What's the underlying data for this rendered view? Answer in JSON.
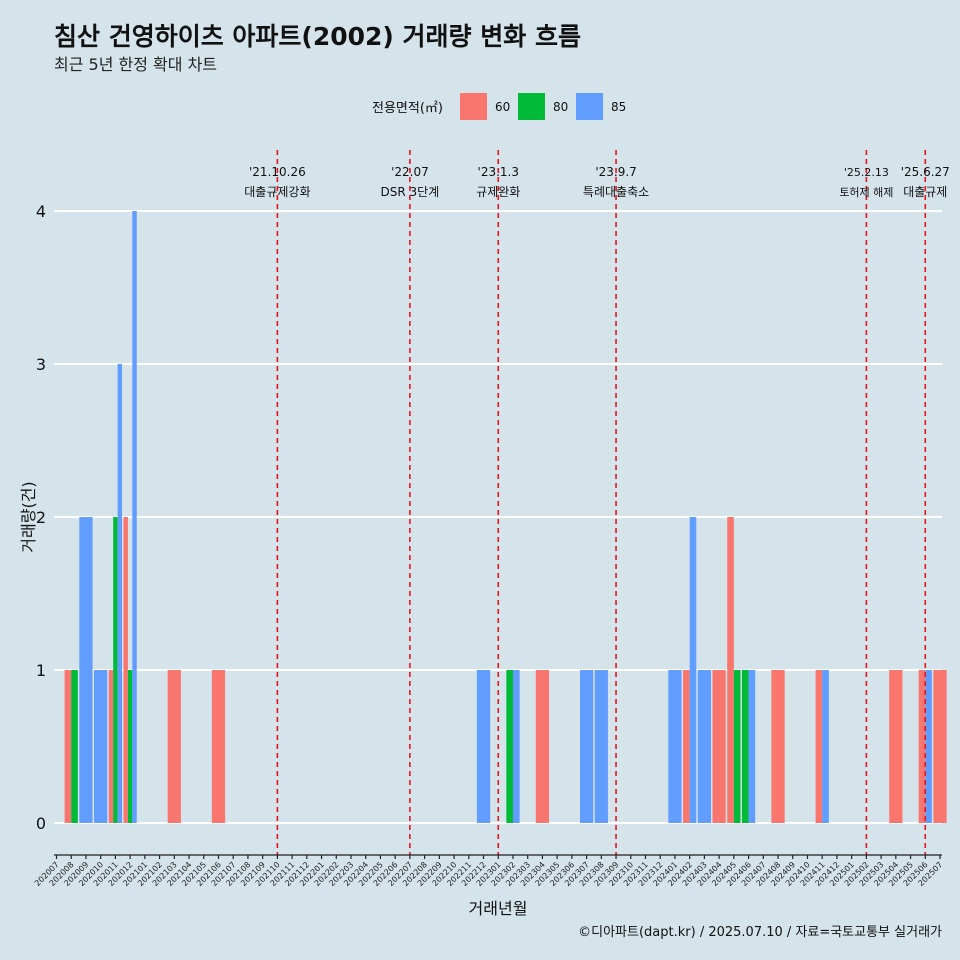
{
  "header": {
    "title": "침산 건영하이츠 아파트(2002) 거래량 변화 흐름",
    "subtitle": "최근 5년 한정 확대 차트"
  },
  "legend": {
    "title": "전용면적(㎡)",
    "placement": "top-center"
  },
  "caption": "©디아파트(dapt.kr) / 2025.07.10 / 자료=국토교통부 실거래가",
  "colors": {
    "background": "#d5e3ea",
    "grid": "#ffffff",
    "vline": "#e8141c",
    "area_60": "#f8766d",
    "area_80": "#00ba38",
    "area_85": "#619cff"
  },
  "chart_data": {
    "type": "bar",
    "position": "dodge",
    "xlabel": "거래년월",
    "ylabel": "거래량(건)",
    "ylim": [
      0,
      4
    ],
    "yticks": [
      0,
      1,
      2,
      3,
      4
    ],
    "grid": "horizontal major",
    "categories": [
      "202007",
      "202008",
      "202009",
      "202010",
      "202011",
      "202012",
      "202101",
      "202102",
      "202103",
      "202104",
      "202105",
      "202106",
      "202107",
      "202108",
      "202109",
      "202110",
      "202111",
      "202112",
      "202201",
      "202202",
      "202203",
      "202204",
      "202205",
      "202206",
      "202207",
      "202208",
      "202209",
      "202210",
      "202211",
      "202212",
      "202301",
      "202302",
      "202303",
      "202304",
      "202305",
      "202306",
      "202307",
      "202308",
      "202309",
      "202310",
      "202311",
      "202312",
      "202401",
      "202402",
      "202403",
      "202404",
      "202405",
      "202406",
      "202407",
      "202408",
      "202409",
      "202410",
      "202411",
      "202412",
      "202501",
      "202502",
      "202503",
      "202504",
      "202505",
      "202506",
      "202507"
    ],
    "series": [
      {
        "name": "60",
        "color": "#f8766d",
        "points": [
          {
            "x": "202008",
            "y": 1
          },
          {
            "x": "202011",
            "y": 1
          },
          {
            "x": "202012",
            "y": 2
          },
          {
            "x": "202103",
            "y": 1
          },
          {
            "x": "202106",
            "y": 1
          },
          {
            "x": "202304",
            "y": 1
          },
          {
            "x": "202402",
            "y": 1
          },
          {
            "x": "202404",
            "y": 1
          },
          {
            "x": "202405",
            "y": 2
          },
          {
            "x": "202408",
            "y": 1
          },
          {
            "x": "202411",
            "y": 1
          },
          {
            "x": "202504",
            "y": 1
          },
          {
            "x": "202506",
            "y": 1
          },
          {
            "x": "202507",
            "y": 1
          }
        ]
      },
      {
        "name": "80",
        "color": "#00ba38",
        "points": [
          {
            "x": "202008",
            "y": 1
          },
          {
            "x": "202011",
            "y": 2
          },
          {
            "x": "202012",
            "y": 1
          },
          {
            "x": "202302",
            "y": 1
          },
          {
            "x": "202405",
            "y": 1
          },
          {
            "x": "202406",
            "y": 1
          }
        ]
      },
      {
        "name": "85",
        "color": "#619cff",
        "points": [
          {
            "x": "202009",
            "y": 2
          },
          {
            "x": "202010",
            "y": 1
          },
          {
            "x": "202011",
            "y": 3
          },
          {
            "x": "202012",
            "y": 4
          },
          {
            "x": "202212",
            "y": 1
          },
          {
            "x": "202302",
            "y": 1
          },
          {
            "x": "202307",
            "y": 1
          },
          {
            "x": "202308",
            "y": 1
          },
          {
            "x": "202401",
            "y": 1
          },
          {
            "x": "202402",
            "y": 2
          },
          {
            "x": "202403",
            "y": 1
          },
          {
            "x": "202406",
            "y": 1
          },
          {
            "x": "202411",
            "y": 1
          },
          {
            "x": "202506",
            "y": 1
          }
        ]
      }
    ],
    "annotations": [
      {
        "x": "202110",
        "date": "'21.10.26",
        "label": "대출규제강화"
      },
      {
        "x": "202207",
        "date": "'22.07",
        "label": "DSR 3단계"
      },
      {
        "x": "202301",
        "date": "'23.1.3",
        "label": "규제완화"
      },
      {
        "x": "202309",
        "date": "'23.9.7",
        "label": "특례대출축소"
      },
      {
        "x": "202502",
        "date": "'25.2.13",
        "label": "토허제 해제"
      },
      {
        "x": "202506",
        "date": "'25.6.27",
        "label": "대출규제"
      }
    ]
  }
}
